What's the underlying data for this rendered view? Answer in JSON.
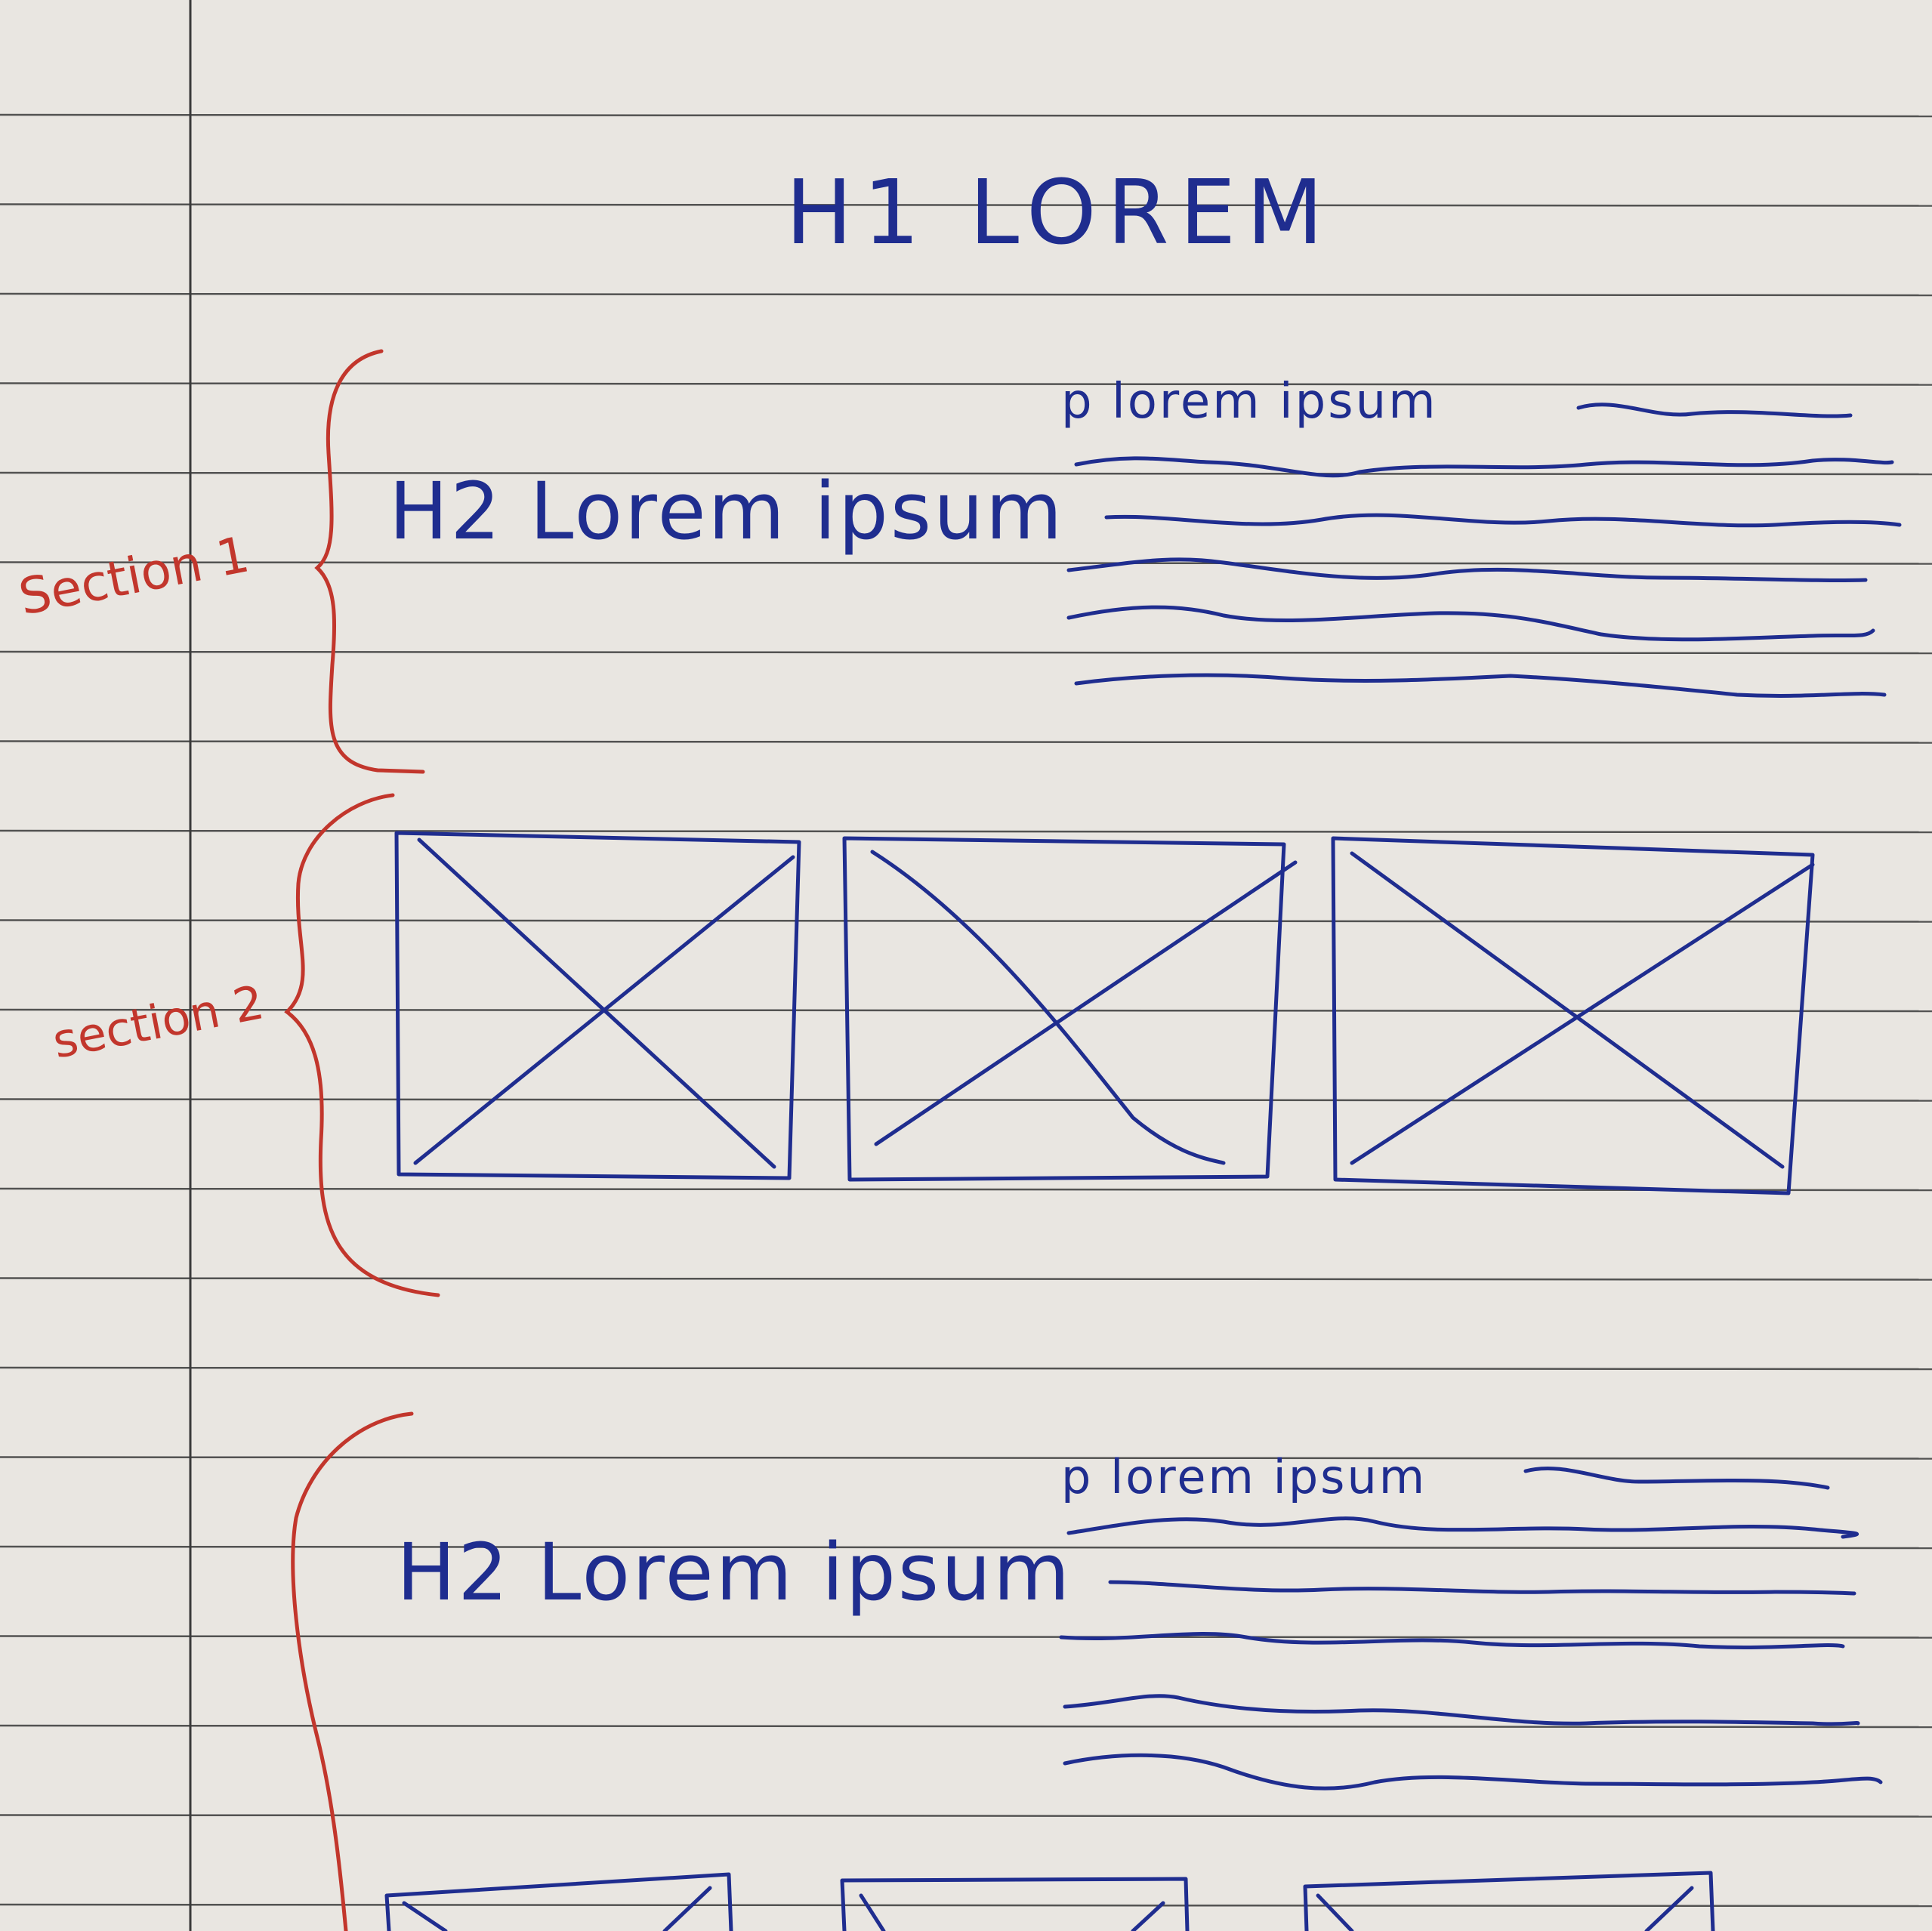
{
  "title": "H1 LOREM",
  "sections": [
    {
      "label": "Section 1",
      "heading": "H2 Lorem ipsum",
      "paragraph": "p  lorem  ipsum"
    },
    {
      "label": "section 2"
    },
    {
      "heading": "H2 Lorem ipsum",
      "paragraph": "p  lorem  ipsum"
    }
  ],
  "colors": {
    "paper": "#e9e6e1",
    "rule": "#3a3a3a",
    "blue_ink": "#1f2d8f",
    "red_ink": "#c2362c"
  }
}
